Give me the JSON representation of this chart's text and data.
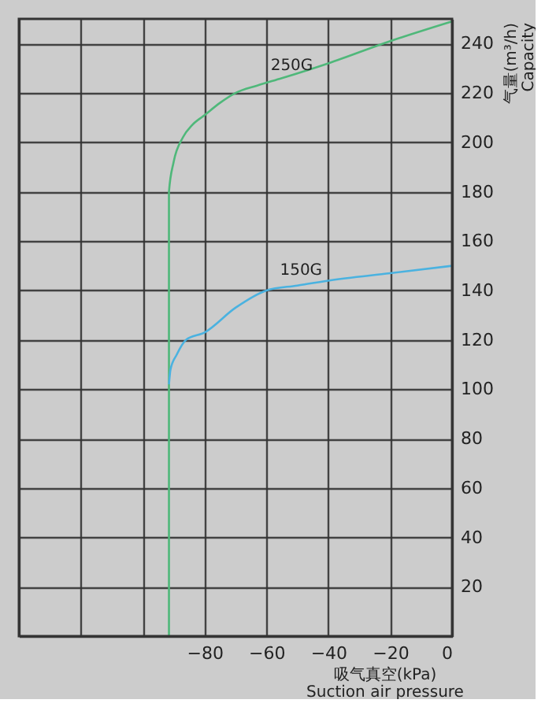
{
  "chart_data": {
    "type": "line",
    "xlabel": "吸气真空(kPa)\nSuction air pressure",
    "ylabel": "气量(m³/h)\nCapacity",
    "xlim": [
      -140,
      0
    ],
    "xticks": [
      {
        "value": -140,
        "label": null
      },
      {
        "value": -120,
        "label": null
      },
      {
        "value": -100,
        "label": null
      },
      -80,
      -60,
      -40,
      -20,
      0
    ],
    "ylim": [
      0,
      250
    ],
    "yticks": [
      {
        "value": 0,
        "label": null
      },
      20,
      40,
      60,
      80,
      100,
      120,
      140,
      160,
      180,
      200,
      220,
      240
    ],
    "grid": true,
    "marker": "none",
    "line_style": "solid",
    "series": [
      {
        "name": "250G",
        "color": "#4fb87a",
        "x": [
          -91.5,
          -91.5,
          -90,
          -87,
          -84,
          -80,
          -75,
          -70,
          -63,
          -55,
          -40,
          -20,
          0
        ],
        "values": [
          0,
          180,
          192,
          202,
          207,
          211,
          216,
          220,
          223,
          226,
          232,
          241,
          249
        ]
      },
      {
        "name": "150G",
        "color": "#4ab2e0",
        "x": [
          -91.5,
          -91,
          -89,
          -86,
          -80,
          -70,
          -60,
          -50,
          -40,
          -20,
          0
        ],
        "values": [
          102,
          108,
          114,
          120,
          123,
          133,
          140,
          142,
          144,
          147,
          150
        ]
      }
    ]
  }
}
